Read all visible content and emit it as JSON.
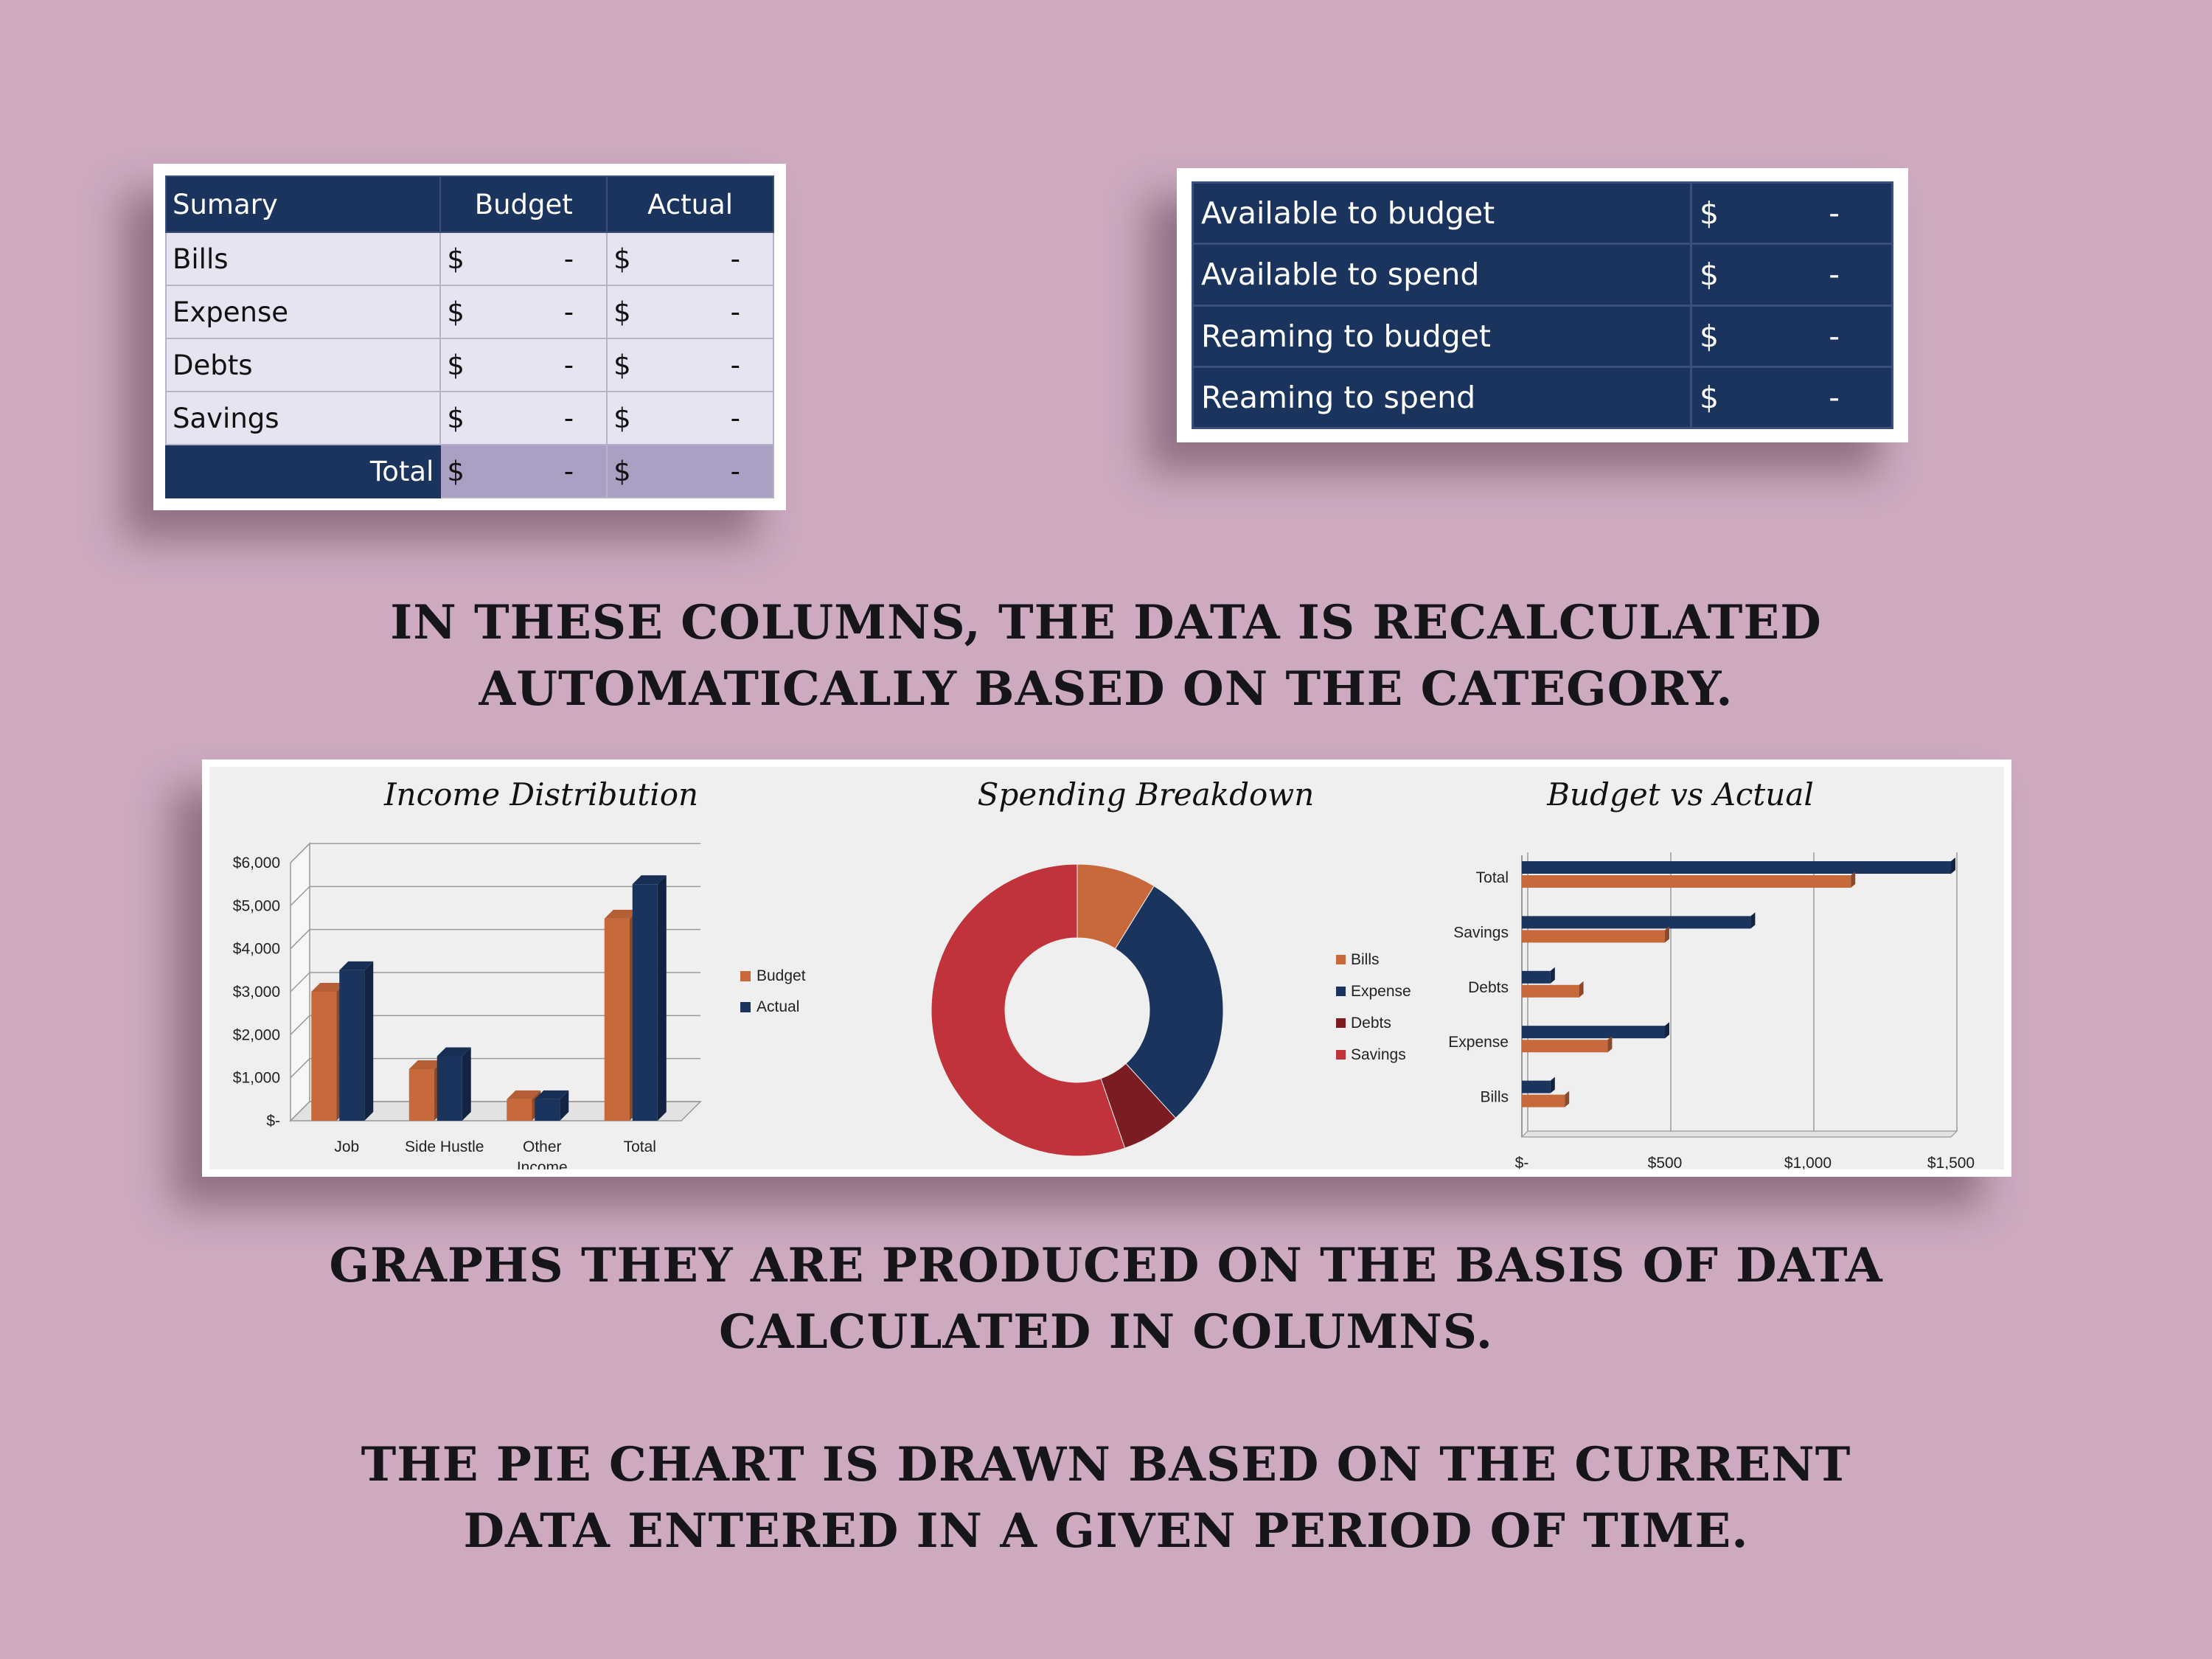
{
  "summary": {
    "headers": [
      "Sumary",
      "Budget",
      "Actual"
    ],
    "rows": [
      {
        "label": "Bills",
        "budget_cur": "$",
        "budget": "-",
        "actual_cur": "$",
        "actual": "-"
      },
      {
        "label": "Expense",
        "budget_cur": "$",
        "budget": "-",
        "actual_cur": "$",
        "actual": "-"
      },
      {
        "label": "Debts",
        "budget_cur": "$",
        "budget": "-",
        "actual_cur": "$",
        "actual": "-"
      },
      {
        "label": "Savings",
        "budget_cur": "$",
        "budget": "-",
        "actual_cur": "$",
        "actual": "-"
      }
    ],
    "total": {
      "label": "Total",
      "budget_cur": "$",
      "budget": "-",
      "actual_cur": "$",
      "actual": "-"
    }
  },
  "availability": [
    {
      "label": "Available to budget",
      "cur": "$",
      "value": "-"
    },
    {
      "label": "Available to spend",
      "cur": "$",
      "value": "-"
    },
    {
      "label": "Reaming to budget",
      "cur": "$",
      "value": "-"
    },
    {
      "label": "Reaming to spend",
      "cur": "$",
      "value": "-"
    }
  ],
  "captions": {
    "c1": [
      "IN THESE COLUMNS, THE DATA IS RECALCULATED",
      "AUTOMATICALLY BASED ON THE CATEGORY."
    ],
    "c2": [
      "GRAPHS THEY ARE PRODUCED ON THE BASIS OF DATA",
      "CALCULATED IN COLUMNS."
    ],
    "c3": [
      "THE PIE CHART IS DRAWN BASED ON THE CURRENT",
      "DATA ENTERED IN A GIVEN PERIOD OF TIME."
    ]
  },
  "colors": {
    "budget": "#c8693b",
    "actual": "#1b345e",
    "bills": "#c8693b",
    "expense": "#1b345e",
    "debts": "#7a1c22",
    "savings": "#c0333a"
  },
  "chart_data": [
    {
      "type": "bar",
      "title": "Income Distribution",
      "categories": [
        "Job",
        "Side Hustle",
        "Other Income",
        "Total"
      ],
      "category_lines": [
        [
          "Job"
        ],
        [
          "Side Hustle"
        ],
        [
          "Other",
          "Income"
        ],
        [
          "Total"
        ]
      ],
      "series": [
        {
          "name": "Budget",
          "values": [
            3000,
            1200,
            500,
            4700
          ]
        },
        {
          "name": "Actual",
          "values": [
            3500,
            1500,
            500,
            5500
          ]
        }
      ],
      "ylim": [
        0,
        6000
      ],
      "yticks": [
        0,
        1000,
        2000,
        3000,
        4000,
        5000,
        6000
      ],
      "ytick_labels": [
        "$-",
        "$1,000",
        "$2,000",
        "$3,000",
        "$4,000",
        "$5,000",
        "$6,000"
      ],
      "legend": "right",
      "grid": true
    },
    {
      "type": "pie",
      "title": "Spending Breakdown",
      "labels": [
        "Bills",
        "Expense",
        "Debts",
        "Savings"
      ],
      "values": [
        150,
        500,
        110,
        940
      ],
      "legend": "right"
    },
    {
      "type": "bar",
      "orientation": "horizontal",
      "title": "Budget vs Actual",
      "categories": [
        "Total",
        "Savings",
        "Debts",
        "Expense",
        "Bills"
      ],
      "series": [
        {
          "name": "Actual",
          "values": [
            1500,
            800,
            100,
            500,
            100
          ]
        },
        {
          "name": "Budget",
          "values": [
            1150,
            500,
            200,
            300,
            150
          ]
        }
      ],
      "xlim": [
        0,
        1500
      ],
      "xticks": [
        0,
        500,
        1000,
        1500
      ],
      "xtick_labels": [
        "$-",
        "$500",
        "$1,000",
        "$1,500"
      ],
      "grid": true
    }
  ]
}
